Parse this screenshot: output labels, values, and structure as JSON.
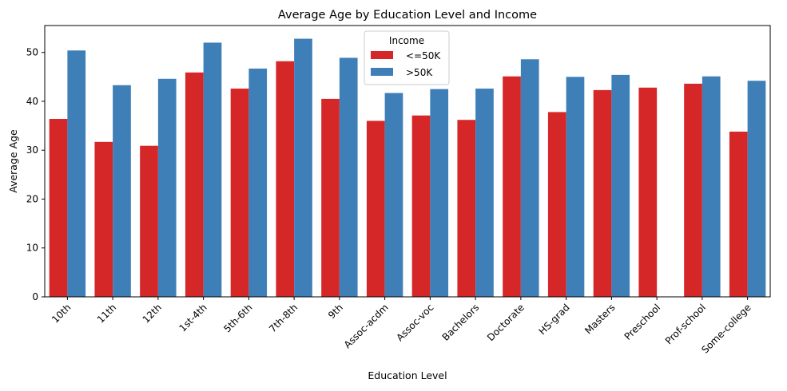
{
  "chart_data": {
    "type": "bar",
    "title": "Average Age by Education Level and Income",
    "xlabel": "Education Level",
    "ylabel": "Average Age",
    "ylim": [
      0,
      55.5
    ],
    "yticks": [
      0,
      10,
      20,
      30,
      40,
      50
    ],
    "grid": false,
    "legend": {
      "title": "Income",
      "placement": "top-center"
    },
    "categories": [
      "10th",
      "11th",
      "12th",
      "1st-4th",
      "5th-6th",
      "7th-8th",
      "9th",
      "Assoc-acdm",
      "Assoc-voc",
      "Bachelors",
      "Doctorate",
      "HS-grad",
      "Masters",
      "Preschool",
      "Prof-school",
      "Some-college"
    ],
    "series": [
      {
        "name": "<=50K",
        "color": "#d62728",
        "values": [
          36.4,
          31.7,
          30.9,
          45.9,
          42.6,
          48.2,
          40.5,
          36.0,
          37.1,
          36.2,
          45.1,
          37.8,
          42.3,
          42.8,
          43.6,
          33.8
        ]
      },
      {
        "name": ">50K",
        "color": "#3f7fb8",
        "values": [
          50.4,
          43.3,
          44.6,
          52.0,
          46.7,
          52.8,
          48.9,
          41.7,
          42.5,
          42.6,
          48.6,
          45.0,
          45.4,
          null,
          45.1,
          44.2
        ]
      }
    ]
  }
}
